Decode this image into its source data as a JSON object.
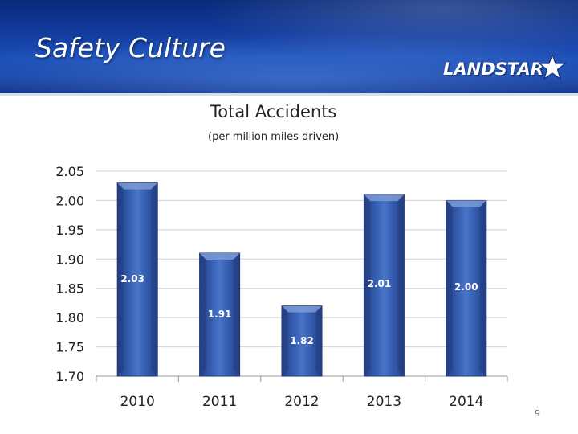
{
  "slide": {
    "title": "Safety Culture",
    "logo_text": "LANDSTAR",
    "page_number": "9"
  },
  "colors": {
    "bar": "#2f55a6",
    "bar_light": "#5b7fc7",
    "bar_dark": "#1a3570",
    "grid": "#cfcfcf",
    "axis": "#9a9a9a",
    "label": "#ffffff"
  },
  "chart_data": {
    "type": "bar",
    "title": "Total  Accidents",
    "subtitle": "(per million miles driven)",
    "categories": [
      "2010",
      "2011",
      "2012",
      "2013",
      "2014"
    ],
    "values": [
      2.03,
      1.91,
      1.82,
      2.01,
      2.0
    ],
    "data_labels": [
      "2.03",
      "1.91",
      "1.82",
      "2.01",
      "2.00"
    ],
    "ylim": [
      1.7,
      2.05
    ],
    "yticks": [
      "1.70",
      "1.75",
      "1.80",
      "1.85",
      "1.90",
      "1.95",
      "2.00",
      "2.05"
    ],
    "xlabel": "",
    "ylabel": "",
    "grid": true,
    "legend": "none"
  }
}
